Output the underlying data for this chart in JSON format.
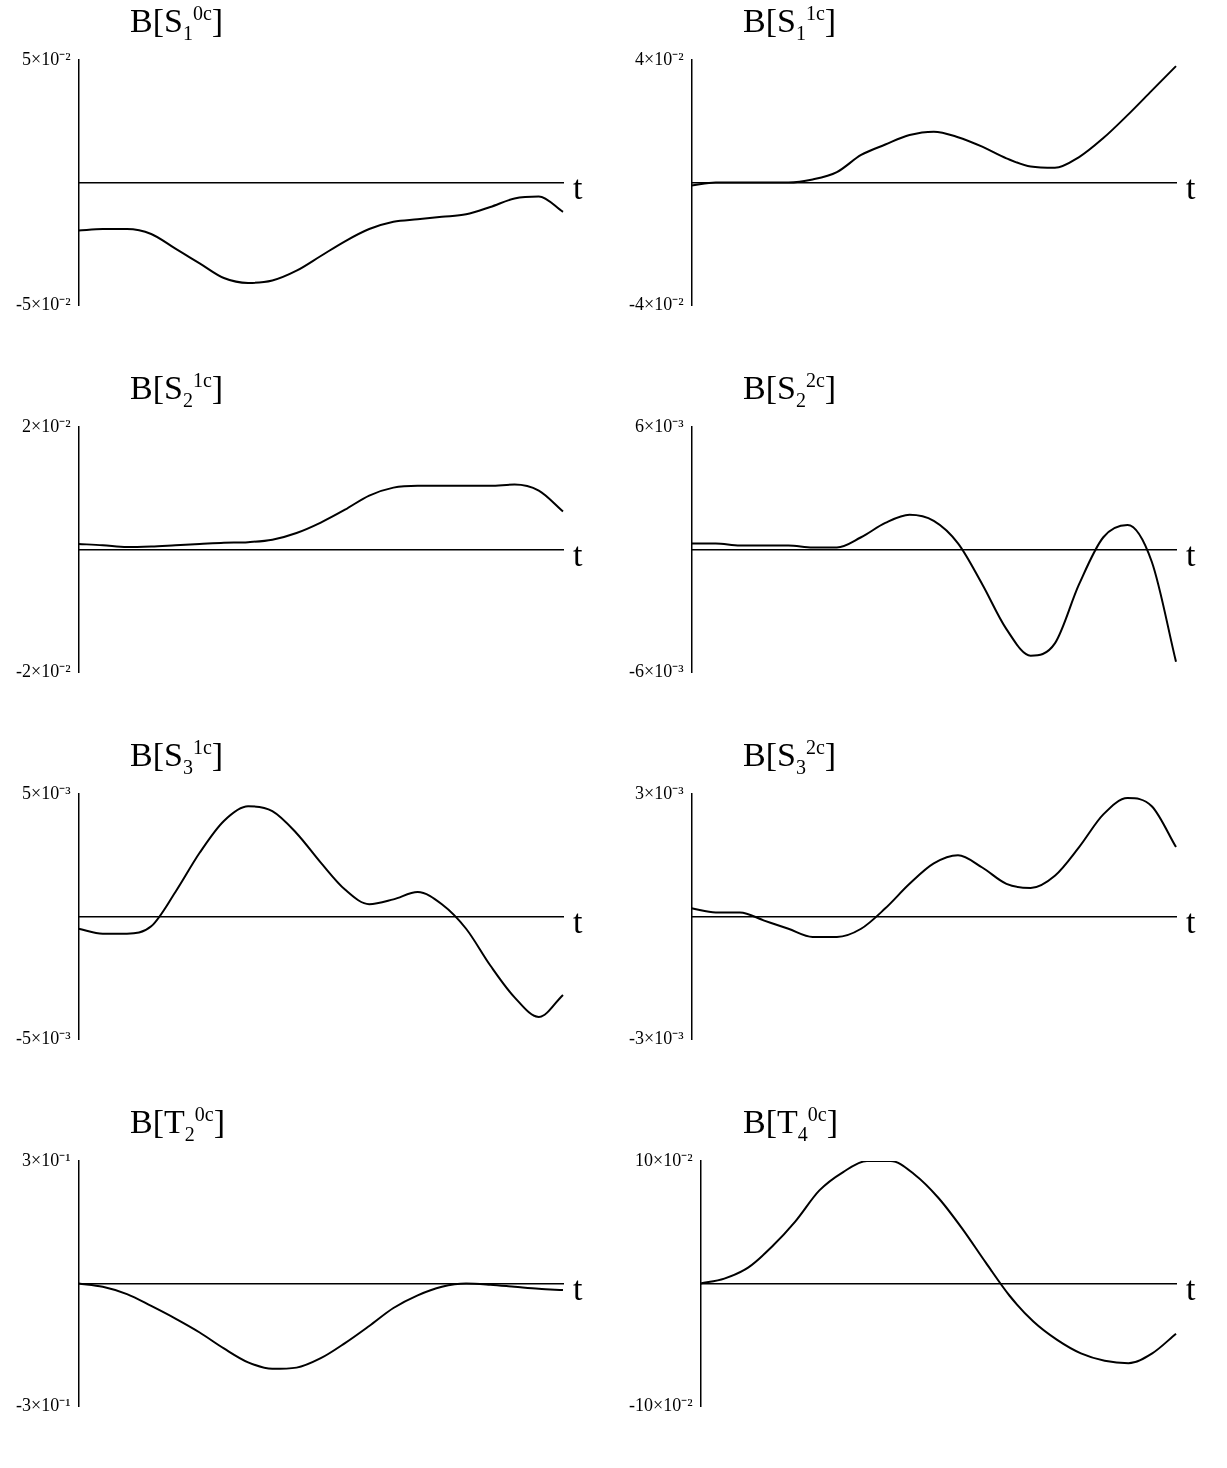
{
  "chart_data": [
    {
      "type": "line",
      "title": "B[S$_{1}$$^{0c}$]",
      "xlabel": "t",
      "categories": [
        null,
        null,
        null,
        null,
        null,
        null,
        null,
        null,
        null,
        null,
        null,
        null,
        null,
        null,
        null,
        null,
        null,
        null,
        null,
        null,
        null
      ],
      "series": [
        {
          "color": "#000000",
          "values": [
            -0.0196,
            -0.019,
            -0.019,
            -0.021,
            -0.027,
            -0.033,
            -0.039,
            -0.041,
            -0.04,
            -0.036,
            -0.03,
            -0.024,
            -0.019,
            -0.016,
            -0.015,
            -0.014,
            -0.013,
            -0.01,
            -0.0065,
            -0.0057,
            -0.012
          ]
        }
      ],
      "ylim": [
        -0.05,
        0.05
      ],
      "yticks": [
        {
          "value": -0.05,
          "label": "-5×10⁻²"
        },
        {
          "value": 0.05,
          "label": "5×10⁻²"
        }
      ],
      "marker": "none"
    },
    {
      "type": "line",
      "title": "B[S$_{1}$$^{1c}$]",
      "xlabel": "t",
      "categories": [
        null,
        null,
        null,
        null,
        null,
        null,
        null,
        null,
        null,
        null,
        null,
        null,
        null,
        null,
        null,
        null,
        null,
        null,
        null,
        null,
        null
      ],
      "series": [
        {
          "color": "#000000",
          "values": [
            -0.001,
            0,
            0,
            0,
            0,
            0.001,
            0.0034,
            0.009,
            0.0124,
            0.0155,
            0.0166,
            0.0148,
            0.0117,
            0.0079,
            0.0052,
            0.0048,
            0.0083,
            0.0145,
            0.022,
            0.03,
            0.038
          ]
        }
      ],
      "ylim": [
        -0.04,
        0.04
      ],
      "yticks": [
        {
          "value": -0.04,
          "label": "-4×10⁻²"
        },
        {
          "value": 0.04,
          "label": "4×10⁻²"
        }
      ],
      "marker": "none"
    },
    {
      "type": "line",
      "title": "B[S$_{2}$$^{1c}$]",
      "xlabel": "t",
      "categories": [
        null,
        null,
        null,
        null,
        null,
        null,
        null,
        null,
        null,
        null,
        null,
        null,
        null,
        null,
        null,
        null,
        null,
        null,
        null,
        null,
        null
      ],
      "series": [
        {
          "color": "#000000",
          "values": [
            0.0009,
            0.0007,
            0.0004,
            0.0005,
            0.0007,
            0.0009,
            0.0011,
            0.0012,
            0.0016,
            0.0027,
            0.0044,
            0.0065,
            0.0088,
            0.0101,
            0.0104,
            0.0104,
            0.0104,
            0.0104,
            0.0106,
            0.0096,
            0.0062
          ]
        }
      ],
      "ylim": [
        -0.02,
        0.02
      ],
      "yticks": [
        {
          "value": -0.02,
          "label": "-2×10⁻²"
        },
        {
          "value": 0.02,
          "label": "2×10⁻²"
        }
      ],
      "marker": "none"
    },
    {
      "type": "line",
      "title": "B[S$_{2}$$^{2c}$]",
      "xlabel": "t",
      "categories": [
        null,
        null,
        null,
        null,
        null,
        null,
        null,
        null,
        null,
        null,
        null,
        null,
        null,
        null,
        null,
        null,
        null,
        null,
        null,
        null,
        null
      ],
      "series": [
        {
          "color": "#000000",
          "values": [
            0.0003,
            0.0003,
            0.0002,
            0.0002,
            0.0002,
            0.0001,
            0.0001,
            0.0006,
            0.0013,
            0.0017,
            0.0014,
            0.0003,
            -0.0017,
            -0.0039,
            -0.0052,
            -0.0046,
            -0.0017,
            0.0006,
            0.0012,
            -0.0006,
            -0.0055
          ]
        }
      ],
      "ylim": [
        -0.006,
        0.006
      ],
      "yticks": [
        {
          "value": -0.006,
          "label": "-6×10⁻³"
        },
        {
          "value": 0.006,
          "label": "6×10⁻³"
        }
      ],
      "marker": "none"
    },
    {
      "type": "line",
      "title": "B[S$_{3}$$^{1c}$]",
      "xlabel": "t",
      "categories": [
        null,
        null,
        null,
        null,
        null,
        null,
        null,
        null,
        null,
        null,
        null,
        null,
        null,
        null,
        null,
        null,
        null,
        null,
        null,
        null,
        null
      ],
      "series": [
        {
          "color": "#000000",
          "values": [
            -0.0005,
            -0.0007,
            -0.0007,
            -0.0004,
            0.001,
            0.0026,
            0.0039,
            0.0045,
            0.0043,
            0.0034,
            0.0022,
            0.0011,
            0.0005,
            0.0007,
            0.001,
            0.0005,
            -0.0005,
            -0.002,
            -0.0033,
            -0.0041,
            -0.0032
          ]
        }
      ],
      "ylim": [
        -0.005,
        0.005
      ],
      "yticks": [
        {
          "value": -0.005,
          "label": "-5×10⁻³"
        },
        {
          "value": 0.005,
          "label": "5×10⁻³"
        }
      ],
      "marker": "none"
    },
    {
      "type": "line",
      "title": "B[S$_{3}$$^{2c}$]",
      "xlabel": "t",
      "categories": [
        null,
        null,
        null,
        null,
        null,
        null,
        null,
        null,
        null,
        null,
        null,
        null,
        null,
        null,
        null,
        null,
        null,
        null,
        null,
        null,
        null
      ],
      "series": [
        {
          "color": "#000000",
          "values": [
            0.0002,
            0.0001,
            0.0001,
            -0.0001,
            -0.0003,
            -0.0005,
            -0.0005,
            -0.0003,
            0.0002,
            0.0008,
            0.0013,
            0.0015,
            0.0012,
            0.0008,
            0.0007,
            0.001,
            0.0017,
            0.0025,
            0.0029,
            0.0027,
            0.0017
          ]
        }
      ],
      "ylim": [
        -0.003,
        0.003
      ],
      "yticks": [
        {
          "value": -0.003,
          "label": "-3×10⁻³"
        },
        {
          "value": 0.003,
          "label": "3×10⁻³"
        }
      ],
      "marker": "none"
    },
    {
      "type": "line",
      "title": "B[T$_{2}$$^{0c}$]",
      "xlabel": "t",
      "categories": [
        null,
        null,
        null,
        null,
        null,
        null,
        null,
        null,
        null,
        null,
        null,
        null,
        null,
        null,
        null,
        null,
        null,
        null,
        null,
        null,
        null
      ],
      "series": [
        {
          "color": "#000000",
          "values": [
            0,
            -0.008,
            -0.026,
            -0.055,
            -0.086,
            -0.12,
            -0.159,
            -0.193,
            -0.209,
            -0.206,
            -0.183,
            -0.146,
            -0.104,
            -0.06,
            -0.029,
            -0.008,
            0,
            -0.003,
            -0.008,
            -0.013,
            -0.016
          ]
        }
      ],
      "ylim": [
        -0.3,
        0.3
      ],
      "yticks": [
        {
          "value": -0.3,
          "label": "-3×10⁻¹"
        },
        {
          "value": 0.3,
          "label": "3×10⁻¹"
        }
      ],
      "marker": "none"
    },
    {
      "type": "line",
      "title": "B[T$_{4}$$^{0c}$]",
      "xlabel": "t",
      "categories": [
        null,
        null,
        null,
        null,
        null,
        null,
        null,
        null,
        null,
        null,
        null,
        null,
        null,
        null,
        null,
        null,
        null,
        null,
        null,
        null,
        null
      ],
      "series": [
        {
          "color": "#000000",
          "values": [
            0,
            0.004,
            0.013,
            0.03,
            0.051,
            0.076,
            0.091,
            0.1,
            0.1,
            0.089,
            0.07,
            0.045,
            0.017,
            -0.01,
            -0.031,
            -0.046,
            -0.057,
            -0.063,
            -0.065,
            -0.057,
            -0.041
          ]
        }
      ],
      "ylim": [
        -0.1,
        0.1
      ],
      "yticks": [
        {
          "value": -0.1,
          "label": "-10×10⁻²"
        },
        {
          "value": 0.1,
          "label": "10×10⁻²"
        }
      ],
      "marker": "none"
    }
  ]
}
